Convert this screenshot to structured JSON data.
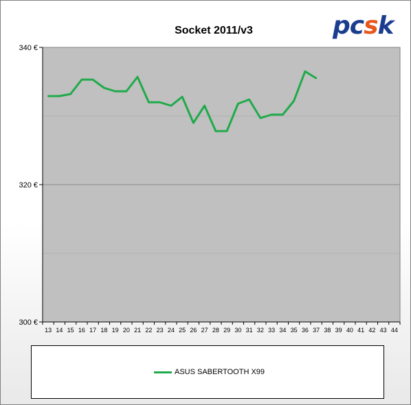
{
  "brand": {
    "logo_text_pc": "pc",
    "logo_text_s": "s",
    "logo_text_k": "k"
  },
  "chart_data": {
    "type": "line",
    "title": "Socket 2011/v3",
    "xlabel": "",
    "ylabel": "",
    "categories": [
      "13",
      "14",
      "15",
      "16",
      "17",
      "18",
      "19",
      "20",
      "21",
      "22",
      "23",
      "24",
      "25",
      "26",
      "27",
      "28",
      "29",
      "30",
      "31",
      "32",
      "33",
      "34",
      "35",
      "36",
      "37",
      "38",
      "39",
      "40",
      "41",
      "42",
      "43",
      "44"
    ],
    "y_tick_labels": [
      "340 €",
      "320 €",
      "300 €"
    ],
    "y_ticks": [
      340,
      320,
      300
    ],
    "ylim": [
      300,
      340
    ],
    "grid": true,
    "legend_position": "bottom",
    "plot_background": "#c0c0c0",
    "series": [
      {
        "name": "ASUS SABERTOOTH X99",
        "color": "#1faa4a",
        "values": [
          332.9,
          332.9,
          333.2,
          335.3,
          335.3,
          334.1,
          333.6,
          333.6,
          335.7,
          332.0,
          332.0,
          331.5,
          332.8,
          329.0,
          331.5,
          327.8,
          327.8,
          331.8,
          332.4,
          329.7,
          330.2,
          330.2,
          332.2,
          336.5,
          335.5,
          null,
          null,
          null,
          null,
          null,
          null,
          null
        ]
      }
    ]
  }
}
